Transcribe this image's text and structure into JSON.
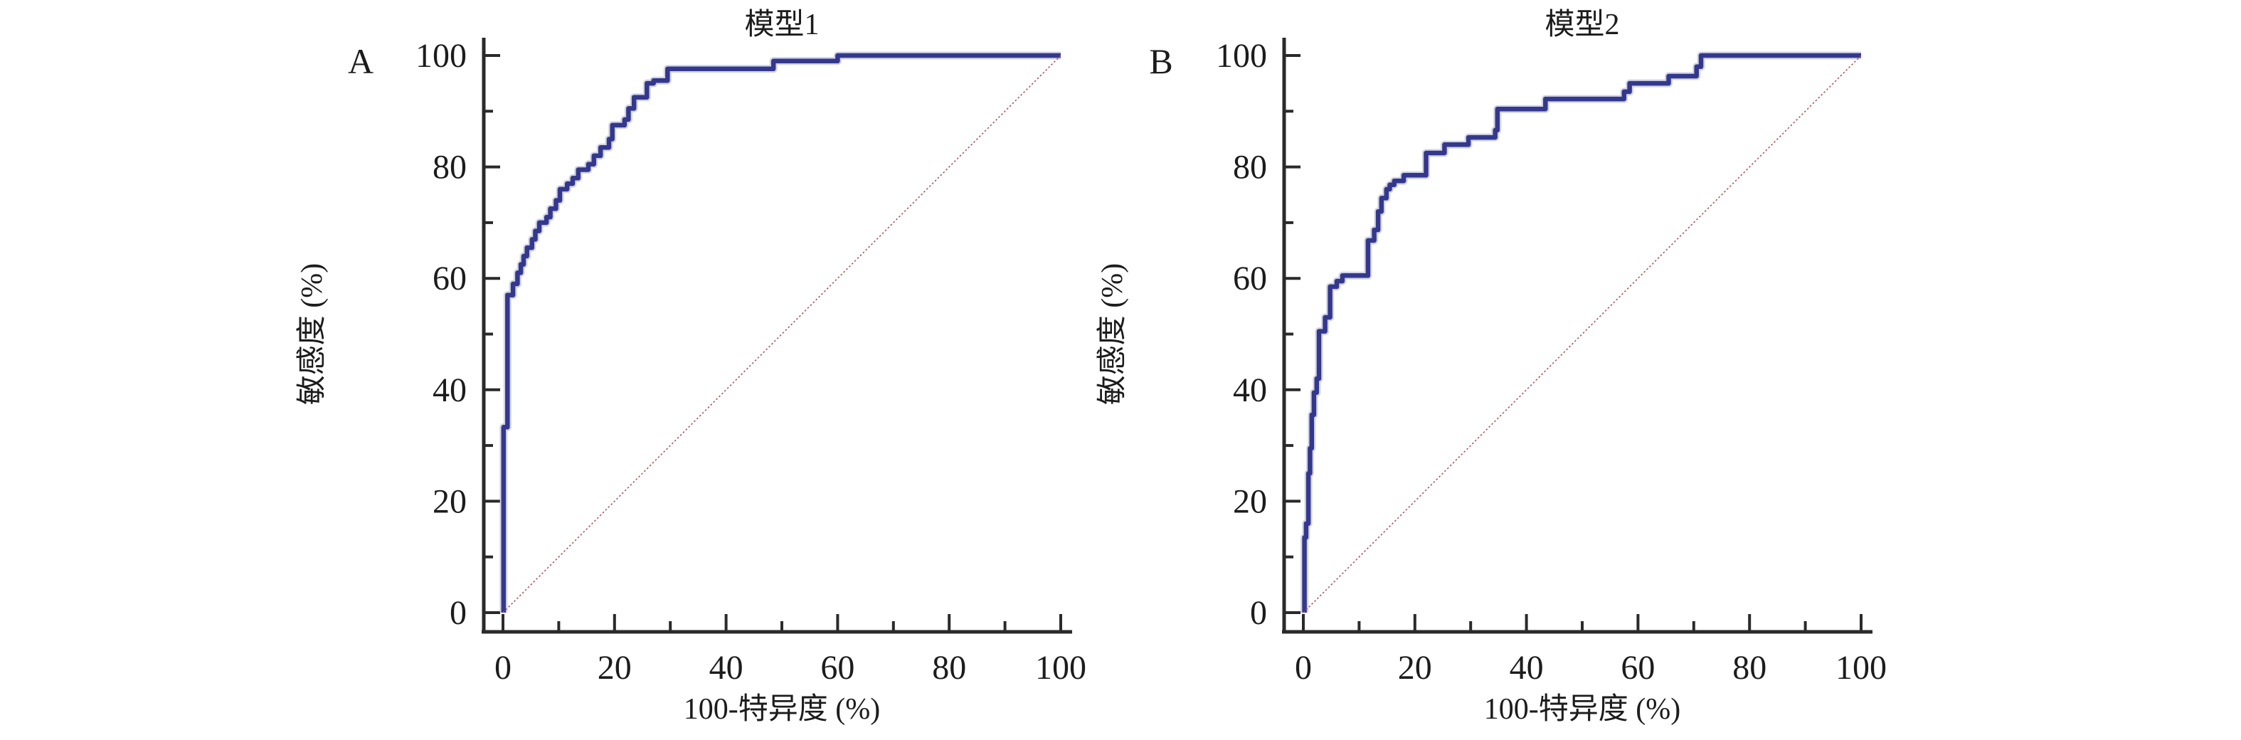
{
  "colors": {
    "roc_curve": "#34388c",
    "roc_curve_halo": "#9a9dcc",
    "reference_line": "#a8565e",
    "axis": "#2a2a2a",
    "text": "#1c1c1c",
    "background": "#ffffff"
  },
  "chart_data": [
    {
      "type": "line",
      "step": true,
      "panel_letter": "A",
      "title": "模型1",
      "grid": false,
      "legend": false,
      "x_axis": {
        "label": "100-特异度 (%)",
        "range": [
          0,
          100
        ],
        "major_ticks": [
          0,
          20,
          40,
          60,
          80,
          100
        ],
        "minor_ticks": [
          10,
          30,
          50,
          70,
          90
        ]
      },
      "y_axis": {
        "label": "敏感度 (%)",
        "range": [
          0,
          100
        ],
        "major_ticks": [
          0,
          20,
          40,
          60,
          80,
          100
        ],
        "minor_ticks": [
          10,
          30,
          50,
          70,
          90
        ]
      },
      "series": [
        {
          "id": "roc-curve",
          "color": "#34388c",
          "points": [
            [
              0.1,
              0
            ],
            [
              0.1,
              33.3
            ],
            [
              0.8,
              33.3
            ],
            [
              0.8,
              57
            ],
            [
              1.8,
              57
            ],
            [
              1.8,
              59
            ],
            [
              2.6,
              59
            ],
            [
              2.6,
              61
            ],
            [
              3.2,
              61
            ],
            [
              3.2,
              62.5
            ],
            [
              3.7,
              62.5
            ],
            [
              3.7,
              64
            ],
            [
              4.3,
              64
            ],
            [
              4.3,
              65.5
            ],
            [
              5.2,
              65.5
            ],
            [
              5.2,
              67
            ],
            [
              5.8,
              67
            ],
            [
              5.8,
              68.5
            ],
            [
              6.5,
              68.5
            ],
            [
              6.5,
              70
            ],
            [
              7.8,
              70
            ],
            [
              7.8,
              71
            ],
            [
              8.5,
              71
            ],
            [
              8.5,
              72.5
            ],
            [
              9.5,
              72.5
            ],
            [
              9.5,
              74
            ],
            [
              10.2,
              74
            ],
            [
              10.2,
              76
            ],
            [
              11.5,
              76
            ],
            [
              11.5,
              77
            ],
            [
              12.5,
              77
            ],
            [
              12.5,
              78
            ],
            [
              13.5,
              78
            ],
            [
              13.5,
              79.5
            ],
            [
              15.3,
              79.5
            ],
            [
              15.3,
              80.5
            ],
            [
              16.3,
              80.5
            ],
            [
              16.3,
              82
            ],
            [
              17.5,
              82
            ],
            [
              17.5,
              83.5
            ],
            [
              19,
              83.5
            ],
            [
              19,
              85
            ],
            [
              19.6,
              85
            ],
            [
              19.6,
              87.5
            ],
            [
              21.8,
              87.5
            ],
            [
              21.8,
              88.5
            ],
            [
              22.5,
              88.5
            ],
            [
              22.5,
              90.5
            ],
            [
              23.5,
              90.5
            ],
            [
              23.5,
              92.5
            ],
            [
              25.8,
              92.5
            ],
            [
              25.8,
              95
            ],
            [
              27,
              95
            ],
            [
              27,
              95.5
            ],
            [
              29.5,
              95.5
            ],
            [
              29.5,
              97.6
            ],
            [
              48.5,
              97.6
            ],
            [
              48.5,
              99
            ],
            [
              60,
              99
            ],
            [
              60,
              100
            ],
            [
              100,
              100
            ]
          ]
        },
        {
          "id": "chance-diagonal",
          "color": "#a8565e",
          "style": "dotted",
          "points": [
            [
              0,
              0
            ],
            [
              100,
              100
            ]
          ]
        }
      ]
    },
    {
      "type": "line",
      "step": true,
      "panel_letter": "B",
      "title": "模型2",
      "grid": false,
      "legend": false,
      "x_axis": {
        "label": "100-特异度 (%)",
        "range": [
          0,
          100
        ],
        "major_ticks": [
          0,
          20,
          40,
          60,
          80,
          100
        ],
        "minor_ticks": [
          10,
          30,
          50,
          70,
          90
        ]
      },
      "y_axis": {
        "label": "敏感度 (%)",
        "range": [
          0,
          100
        ],
        "major_ticks": [
          0,
          20,
          40,
          60,
          80,
          100
        ],
        "minor_ticks": [
          10,
          30,
          50,
          70,
          90
        ]
      },
      "series": [
        {
          "id": "roc-curve",
          "color": "#34388c",
          "points": [
            [
              0.2,
              0
            ],
            [
              0.2,
              13.5
            ],
            [
              0.5,
              13.5
            ],
            [
              0.5,
              16
            ],
            [
              0.9,
              16
            ],
            [
              0.9,
              25
            ],
            [
              1.2,
              25
            ],
            [
              1.2,
              29.5
            ],
            [
              1.5,
              29.5
            ],
            [
              1.5,
              35.5
            ],
            [
              1.9,
              35.5
            ],
            [
              1.9,
              39.5
            ],
            [
              2.4,
              39.5
            ],
            [
              2.4,
              42
            ],
            [
              2.8,
              42
            ],
            [
              2.8,
              50.5
            ],
            [
              3.9,
              50.5
            ],
            [
              3.9,
              53
            ],
            [
              4.8,
              53
            ],
            [
              4.8,
              58.5
            ],
            [
              6,
              58.5
            ],
            [
              6,
              59.5
            ],
            [
              7,
              59.5
            ],
            [
              7,
              60.5
            ],
            [
              11.6,
              60.5
            ],
            [
              11.6,
              66.8
            ],
            [
              12.7,
              66.8
            ],
            [
              12.7,
              68.7
            ],
            [
              13.4,
              68.7
            ],
            [
              13.4,
              72
            ],
            [
              14,
              72
            ],
            [
              14,
              74.4
            ],
            [
              14.9,
              74.4
            ],
            [
              14.9,
              76
            ],
            [
              15.5,
              76
            ],
            [
              15.5,
              76.8
            ],
            [
              16.3,
              76.8
            ],
            [
              16.3,
              77.5
            ],
            [
              18,
              77.5
            ],
            [
              18,
              78.5
            ],
            [
              22,
              78.5
            ],
            [
              22,
              82.5
            ],
            [
              25.3,
              82.5
            ],
            [
              25.3,
              84
            ],
            [
              29.6,
              84
            ],
            [
              29.6,
              85.3
            ],
            [
              34.4,
              85.3
            ],
            [
              34.4,
              86.6
            ],
            [
              34.8,
              86.6
            ],
            [
              34.8,
              90.4
            ],
            [
              43.4,
              90.4
            ],
            [
              43.4,
              92.2
            ],
            [
              57.5,
              92.2
            ],
            [
              57.5,
              93.5
            ],
            [
              58.5,
              93.5
            ],
            [
              58.5,
              95
            ],
            [
              65.5,
              95
            ],
            [
              65.5,
              96.3
            ],
            [
              70.5,
              96.3
            ],
            [
              70.5,
              98
            ],
            [
              71.3,
              98
            ],
            [
              71.3,
              100
            ],
            [
              100,
              100
            ]
          ]
        },
        {
          "id": "chance-diagonal",
          "color": "#a8565e",
          "style": "dotted",
          "points": [
            [
              0,
              0
            ],
            [
              100,
              100
            ]
          ]
        }
      ]
    }
  ]
}
